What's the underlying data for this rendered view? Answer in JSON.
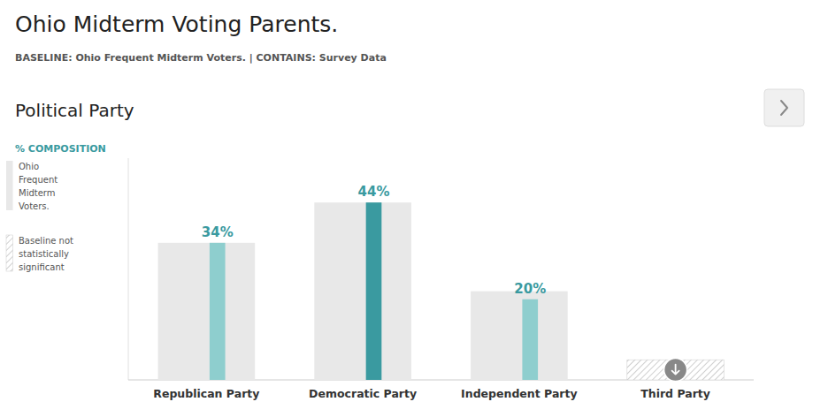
{
  "chart_data": {
    "type": "bar",
    "title": "Ohio Midterm Voting Parents.",
    "subtitle": "BASELINE: Ohio Frequent Midterm Voters. | CONTAINS: Survey Data",
    "annotations": [
      "Political Party",
      "% COMPOSITION"
    ],
    "categories": [
      "Republican Party",
      "Democratic Party",
      "Independent Party",
      "Third Party"
    ],
    "series": [
      {
        "name": "Ohio\nFrequent\nMidterm\nVoters.",
        "color": "#e8e8e8",
        "values": [
          34,
          44,
          22,
          null
        ]
      },
      {
        "colors": [
          "#8ecece",
          "#3a9aa0",
          "#8ecece",
          null
        ],
        "values": [
          34,
          44,
          20,
          null
        ],
        "value_labels": [
          "34%",
          "44%",
          "20%",
          null
        ]
      },
      {
        "name": "Baseline not\nstatistically\nsignificant",
        "color": "#cccccc",
        "marker": "hatch",
        "values": [
          null,
          null,
          null,
          5
        ]
      }
    ],
    "ylim": [
      0,
      55
    ],
    "yticks": [],
    "tick_labels": "x",
    "grid": false,
    "legend": "left",
    "data_labels": true
  }
}
